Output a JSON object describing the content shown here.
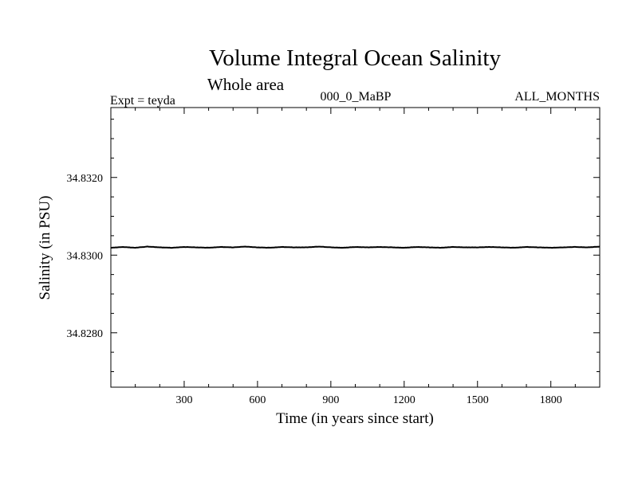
{
  "chart_data": {
    "type": "line",
    "title": "Volume Integral Ocean Salinity",
    "subtitle": "Whole area",
    "experiment_label": "Expt = teyda",
    "period_label": "000_0_MaBP",
    "season_label": "ALL_MONTHS",
    "xlabel": "Time (in years since start)",
    "ylabel": "Salinity (in PSU)",
    "xlim": [
      0,
      2000
    ],
    "ylim": [
      34.8266,
      34.8338
    ],
    "x_ticks": [
      300,
      600,
      900,
      1200,
      1500,
      1800
    ],
    "x_tick_labels": [
      "300",
      "600",
      "900",
      "1200",
      "1500",
      "1800"
    ],
    "y_ticks": [
      34.828,
      34.83,
      34.832
    ],
    "y_tick_labels": [
      "34.8280",
      "34.8300",
      "34.8320"
    ],
    "grid": false,
    "series": [
      {
        "name": "salinity",
        "x": [
          0,
          50,
          100,
          150,
          200,
          250,
          300,
          350,
          400,
          450,
          500,
          550,
          600,
          650,
          700,
          750,
          800,
          850,
          900,
          950,
          1000,
          1050,
          1100,
          1150,
          1200,
          1250,
          1300,
          1350,
          1400,
          1450,
          1500,
          1550,
          1600,
          1650,
          1700,
          1750,
          1800,
          1850,
          1900,
          1950,
          2000
        ],
        "values": [
          34.83019,
          34.83021,
          34.83019,
          34.83022,
          34.8302,
          34.83019,
          34.83021,
          34.8302,
          34.83019,
          34.83021,
          34.8302,
          34.83022,
          34.8302,
          34.83019,
          34.83021,
          34.8302,
          34.8302,
          34.83022,
          34.8302,
          34.83019,
          34.83021,
          34.8302,
          34.83021,
          34.8302,
          34.83019,
          34.83021,
          34.8302,
          34.83019,
          34.83021,
          34.8302,
          34.8302,
          34.83021,
          34.8302,
          34.83019,
          34.83021,
          34.8302,
          34.83019,
          34.8302,
          34.83021,
          34.8302,
          34.83022
        ]
      }
    ]
  }
}
